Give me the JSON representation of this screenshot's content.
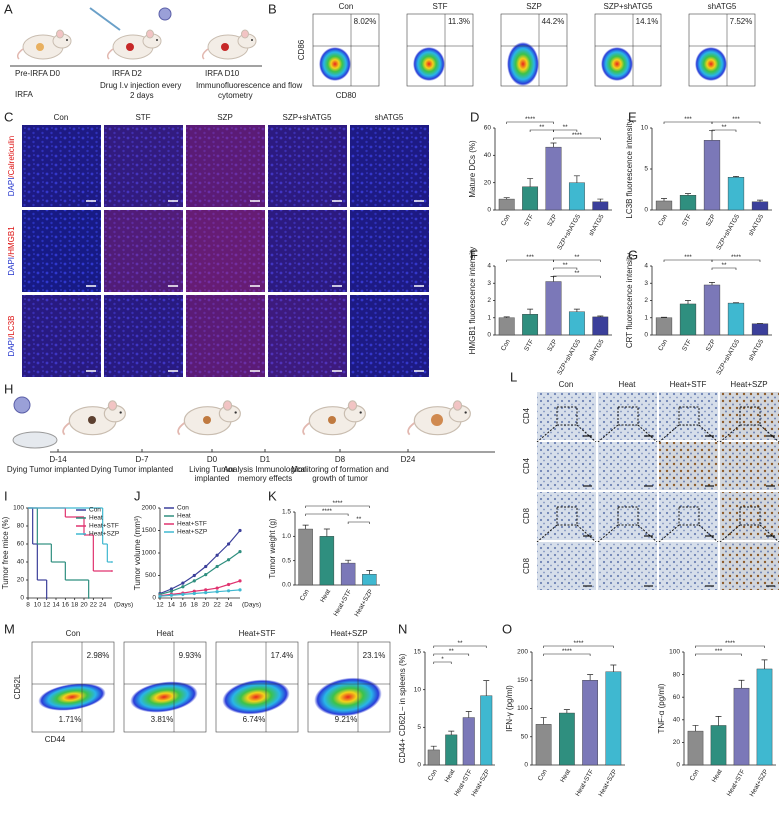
{
  "panel_labels": [
    "A",
    "B",
    "C",
    "D",
    "E",
    "F",
    "G",
    "H",
    "I",
    "J",
    "K",
    "L",
    "M",
    "N",
    "O"
  ],
  "panel_a": {
    "steps": [
      {
        "day": "Pre-IRFA D0",
        "note": [
          "IRFA"
        ]
      },
      {
        "day": "IRFA D2",
        "note": [
          "Drug  I.v injection every",
          "2 days"
        ]
      },
      {
        "day": "IRFA D10",
        "note": [
          "Immunofluorescence and flow",
          "cytometry"
        ]
      }
    ]
  },
  "panel_b": {
    "groups": [
      "Con",
      "STF",
      "SZP",
      "SZP+shATG5",
      "shATG5"
    ],
    "percentages": [
      "8.02%",
      "11.3%",
      "44.2%",
      "14.1%",
      "7.52%"
    ],
    "y_axis": "CD86",
    "x_axis": "CD80"
  },
  "panel_c": {
    "groups": [
      "Con",
      "STF",
      "SZP",
      "SZP+shATG5",
      "shATG5"
    ],
    "stains": [
      [
        "DAPI",
        "/Calreticulin"
      ],
      [
        "DAPI",
        "/HMGB1"
      ],
      [
        "DAPI",
        "/LC3B"
      ]
    ]
  },
  "panel_h": {
    "timeline": [
      {
        "day": "D-14",
        "event": [
          "Dying Tumor implanted"
        ]
      },
      {
        "day": "D-7",
        "event": [
          "Dying Tumor implanted"
        ]
      },
      {
        "day": "D0",
        "event": [
          "Living Tumor",
          "implanted"
        ]
      },
      {
        "day": "D1",
        "event": [
          "Analysis Immunological",
          "memory effects"
        ]
      },
      {
        "day": "D8",
        "event": [
          "Monitoring of formation and",
          "growth of tumor"
        ]
      },
      {
        "day": "D24",
        "event": []
      }
    ]
  },
  "panel_l": {
    "groups": [
      "Con",
      "Heat",
      "Heat+STF",
      "Heat+SZP"
    ],
    "rows": [
      "CD4",
      "CD4",
      "CD8",
      "CD8"
    ]
  },
  "panel_m": {
    "groups": [
      "Con",
      "Heat",
      "Heat+STF",
      "Heat+SZP"
    ],
    "upper": [
      "2.98%",
      "9.93%",
      "17.4%",
      "23.1%"
    ],
    "lower": [
      "1.71%",
      "3.81%",
      "6.74%",
      "9.21%"
    ],
    "y_axis": "CD62L",
    "x_axis": "CD44"
  },
  "chart_data": [
    {
      "type": "bar",
      "y_label": "Mature DCs (%)",
      "categories": [
        "Con",
        "STF",
        "SZP",
        "SZP+shATG5",
        "shATG5"
      ],
      "values": [
        8,
        17,
        46,
        20,
        6
      ],
      "errors": [
        1,
        6,
        3,
        5,
        2
      ],
      "colors": [
        "#8c8c8c",
        "#2f8f7f",
        "#7b78b8",
        "#3fb8d0",
        "#3b3f9a"
      ],
      "ylim": [
        0,
        60
      ],
      "yticks": [
        0,
        20,
        40,
        60
      ],
      "annotations": [
        "****",
        "**",
        "**",
        "****"
      ]
    },
    {
      "type": "bar",
      "y_label": "LC3B fluorescence intensity",
      "categories": [
        "Con",
        "STF",
        "SZP",
        "SZP+shATG5",
        "shATG5"
      ],
      "values": [
        1.1,
        1.8,
        8.5,
        4.0,
        1.0
      ],
      "errors": [
        0.3,
        0.2,
        1.2,
        0.1,
        0.2
      ],
      "colors": [
        "#8c8c8c",
        "#2f8f7f",
        "#7b78b8",
        "#3fb8d0",
        "#3b3f9a"
      ],
      "ylim": [
        0,
        10
      ],
      "yticks": [
        0,
        5,
        10
      ],
      "annotations": [
        "***",
        "**",
        "***"
      ]
    },
    {
      "type": "bar",
      "y_label": "HMGB1 fluorescence intensity",
      "categories": [
        "Con",
        "STF",
        "SZP",
        "SZP+shATG5",
        "shATG5"
      ],
      "values": [
        1.0,
        1.2,
        3.1,
        1.35,
        1.05
      ],
      "errors": [
        0.05,
        0.3,
        0.3,
        0.15,
        0.05
      ],
      "colors": [
        "#8c8c8c",
        "#2f8f7f",
        "#7b78b8",
        "#3fb8d0",
        "#3b3f9a"
      ],
      "ylim": [
        0,
        4
      ],
      "yticks": [
        0,
        1,
        2,
        3,
        4
      ],
      "annotations": [
        "***",
        "**",
        "**",
        "**"
      ]
    },
    {
      "type": "bar",
      "y_label": "CRT fluorescence intensity",
      "categories": [
        "Con",
        "STF",
        "SZP",
        "SZP+shATG5",
        "shATG5"
      ],
      "values": [
        1.0,
        1.8,
        2.9,
        1.85,
        0.65
      ],
      "errors": [
        0.03,
        0.2,
        0.15,
        0.02,
        0.02
      ],
      "colors": [
        "#8c8c8c",
        "#2f8f7f",
        "#7b78b8",
        "#3fb8d0",
        "#3b3f9a"
      ],
      "ylim": [
        0,
        4
      ],
      "yticks": [
        0,
        1,
        2,
        3,
        4
      ],
      "annotations": [
        "***",
        "**",
        "****"
      ]
    },
    {
      "type": "step",
      "y_label": "Tumor free mice (%)",
      "x_label": "(Days)",
      "xlim": [
        8,
        26
      ],
      "xticks": [
        8,
        10,
        12,
        14,
        16,
        18,
        20,
        22,
        24
      ],
      "ylim": [
        0,
        100
      ],
      "yticks": [
        0,
        20,
        40,
        60,
        80,
        100
      ],
      "series": [
        {
          "name": "Con",
          "color": "#3b3f9a",
          "x": [
            8,
            9,
            10,
            12
          ],
          "values": [
            100,
            60,
            20,
            0
          ]
        },
        {
          "name": "Heat",
          "color": "#2f8f7f",
          "x": [
            8,
            10,
            13,
            16,
            21
          ],
          "values": [
            100,
            60,
            40,
            20,
            0
          ]
        },
        {
          "name": "Heat+STF",
          "color": "#e0336f",
          "x": [
            8,
            16,
            20,
            22,
            26
          ],
          "values": [
            100,
            90,
            70,
            30,
            30
          ]
        },
        {
          "name": "Heat+SZP",
          "color": "#3fb8d0",
          "x": [
            8,
            24,
            25,
            26
          ],
          "values": [
            100,
            60,
            40,
            40
          ]
        }
      ]
    },
    {
      "type": "line",
      "y_label": "Tumor volume (mm³)",
      "x_label": "(Days)",
      "x": [
        12,
        14,
        16,
        18,
        20,
        22,
        24,
        26
      ],
      "xlim": [
        12,
        26
      ],
      "xticks": [
        12,
        14,
        16,
        18,
        20,
        22,
        24
      ],
      "ylim": [
        0,
        2000
      ],
      "yticks": [
        0,
        500,
        1000,
        1500,
        2000
      ],
      "series": [
        {
          "name": "Con",
          "color": "#3b3f9a",
          "values": [
            100,
            200,
            330,
            500,
            700,
            950,
            1200,
            1500
          ]
        },
        {
          "name": "Heat",
          "color": "#2f8f7f",
          "values": [
            80,
            150,
            250,
            380,
            520,
            700,
            850,
            1030
          ]
        },
        {
          "name": "Heat+STF",
          "color": "#e0336f",
          "values": [
            50,
            80,
            110,
            150,
            180,
            220,
            300,
            380
          ]
        },
        {
          "name": "Heat+SZP",
          "color": "#3fb8d0",
          "values": [
            40,
            60,
            80,
            100,
            120,
            140,
            160,
            180
          ]
        }
      ]
    },
    {
      "type": "bar",
      "y_label": "Tumor weight (g)",
      "categories": [
        "Con",
        "Heat",
        "Heat+STF",
        "Heat+SZP"
      ],
      "values": [
        1.15,
        1.0,
        0.45,
        0.22
      ],
      "errors": [
        0.08,
        0.15,
        0.06,
        0.08
      ],
      "colors": [
        "#8c8c8c",
        "#2f8f7f",
        "#7b78b8",
        "#3fb8d0"
      ],
      "ylim": [
        0,
        1.5
      ],
      "yticks": [
        {
          "value": 0,
          "label": "0.0"
        },
        0.5,
        {
          "value": 1,
          "label": "1.0"
        },
        1.5
      ],
      "annotations": [
        "****",
        "****",
        "**"
      ]
    },
    {
      "type": "bar",
      "y_label": "CD44+ CD62L− in spleens (%)",
      "categories": [
        "Con",
        "Heat",
        "Heat+STF",
        "Heat+SZP"
      ],
      "values": [
        2,
        4,
        6.3,
        9.2
      ],
      "errors": [
        0.5,
        0.5,
        0.8,
        2
      ],
      "colors": [
        "#8c8c8c",
        "#2f8f7f",
        "#7b78b8",
        "#3fb8d0"
      ],
      "ylim": [
        0,
        15
      ],
      "yticks": [
        0,
        5,
        10,
        15
      ],
      "annotations": [
        "*",
        "**",
        "**"
      ]
    },
    {
      "type": "bar",
      "y_label": "IFN-γ (pg/ml)",
      "categories": [
        "Con",
        "Heat",
        "Heat+STF",
        "Heat+SZP"
      ],
      "values": [
        72,
        92,
        150,
        165
      ],
      "errors": [
        12,
        6,
        10,
        12
      ],
      "colors": [
        "#8c8c8c",
        "#2f8f7f",
        "#7b78b8",
        "#3fb8d0"
      ],
      "ylim": [
        0,
        200
      ],
      "yticks": [
        0,
        50,
        100,
        150,
        200
      ],
      "annotations": [
        "****",
        "****"
      ]
    },
    {
      "type": "bar",
      "y_label": "TNF-α (pg/ml)",
      "categories": [
        "Con",
        "Heat",
        "Heat+STF",
        "Heat+SZP"
      ],
      "values": [
        30,
        35,
        68,
        85
      ],
      "errors": [
        5,
        8,
        7,
        8
      ],
      "colors": [
        "#8c8c8c",
        "#2f8f7f",
        "#7b78b8",
        "#3fb8d0"
      ],
      "ylim": [
        0,
        100
      ],
      "yticks": [
        0,
        20,
        40,
        60,
        80,
        100
      ],
      "annotations": [
        "****",
        "***"
      ]
    }
  ]
}
